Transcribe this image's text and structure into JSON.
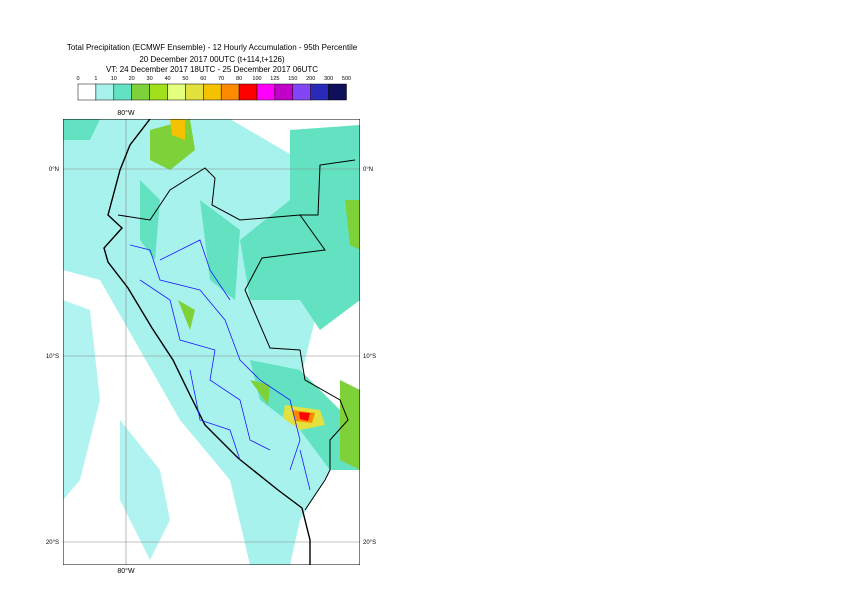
{
  "header": {
    "title": "Total Precipitation (ECMWF Ensemble) - 12 Hourly Accumulation - 95th Percentile",
    "line2": "20 December 2017 00UTC (t+114,t+126)",
    "line3": "VT: 24 December 2017 18UTC - 25 December 2017 06UTC"
  },
  "legend": {
    "labels": [
      0,
      1,
      10,
      20,
      30,
      40,
      50,
      60,
      70,
      80,
      100,
      125,
      150,
      200,
      300,
      500
    ],
    "colors": [
      "#ffffff",
      "#a8f2ee",
      "#62e2c0",
      "#7fd13a",
      "#a2e01c",
      "#e4ff7e",
      "#e2e13e",
      "#f4c200",
      "#ff8a00",
      "#ff0000",
      "#ff00ff",
      "#c000c8",
      "#8246f5",
      "#2a2ab8",
      "#10105a"
    ]
  },
  "map": {
    "lon_labels": [
      "80°W"
    ],
    "lat_labels": [
      "0°N",
      "10°S",
      "20°S"
    ]
  }
}
